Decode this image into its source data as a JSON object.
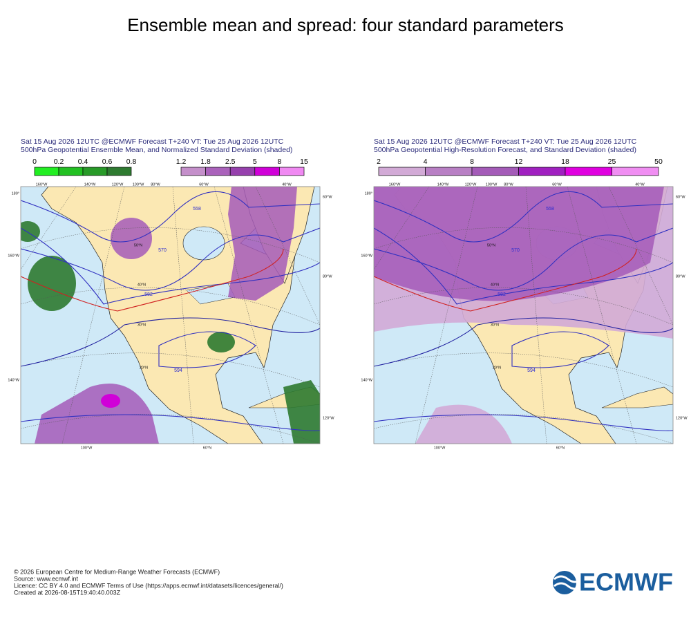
{
  "title": "Ensemble mean and spread: four standard parameters",
  "panels": [
    {
      "header": [
        "Sat 15 Aug 2026 12UTC @ECMWF Forecast T+240 VT: Tue 25 Aug 2026 12UTC",
        "500hPa Geopotential Ensemble Mean, and Normalized Standard Deviation (shaded)"
      ],
      "colorbars": [
        {
          "values": [
            0,
            0.2,
            0.4,
            0.6,
            0.8
          ],
          "colors": [
            "#22ee22",
            "#22c022",
            "#289a28",
            "#2e7a30"
          ]
        },
        {
          "values": [
            1.2,
            1.8,
            2.5,
            5,
            8,
            15
          ],
          "colors": [
            "#c48fca",
            "#aa62bb",
            "#9640ad",
            "#d000d8",
            "#f089f2"
          ]
        }
      ],
      "map_labels": [
        "180°",
        "160°W",
        "140°W",
        "160°W",
        "140°W",
        "120°W",
        "100°W",
        "80°W",
        "60°W",
        "40°W",
        "60°W",
        "80°W",
        "120°W",
        "100°W",
        "60°N",
        "50°N",
        "40°N",
        "30°N",
        "20°N"
      ],
      "contour_labels": [
        "558",
        "570",
        "582",
        "594"
      ]
    },
    {
      "header": [
        "Sat 15 Aug 2026 12UTC @ECMWF Forecast T+240 VT: Tue 25 Aug 2026 12UTC",
        "500hPa Geopotential High-Resolution Forecast, and Standard Deviation (shaded)"
      ],
      "colorbars": [
        {
          "values": [
            2,
            4,
            8,
            12,
            18,
            25,
            50
          ],
          "colors": [
            "#d2aad6",
            "#b87fc4",
            "#a45bb8",
            "#a020c0",
            "#e000e0",
            "#f08ef2"
          ]
        }
      ],
      "map_labels": [
        "180°",
        "160°W",
        "140°W",
        "160°W",
        "140°W",
        "120°W",
        "100°W",
        "80°W",
        "60°W",
        "40°W",
        "60°W",
        "80°W",
        "120°W",
        "100°W",
        "60°N",
        "50°N",
        "40°N",
        "30°N",
        "20°N"
      ],
      "contour_labels": [
        "558",
        "570",
        "582",
        "594"
      ]
    }
  ],
  "footer": [
    "© 2026 European Centre for Medium-Range Weather Forecasts (ECMWF)",
    "Source: www.ecmwf.int",
    "Licence: CC BY 4.0 and ECMWF Terms of Use (https://apps.ecmwf.int/datasets/licences/general/)",
    "Created at 2026-08-15T19:40:40.003Z"
  ],
  "logo": "ECMWF"
}
